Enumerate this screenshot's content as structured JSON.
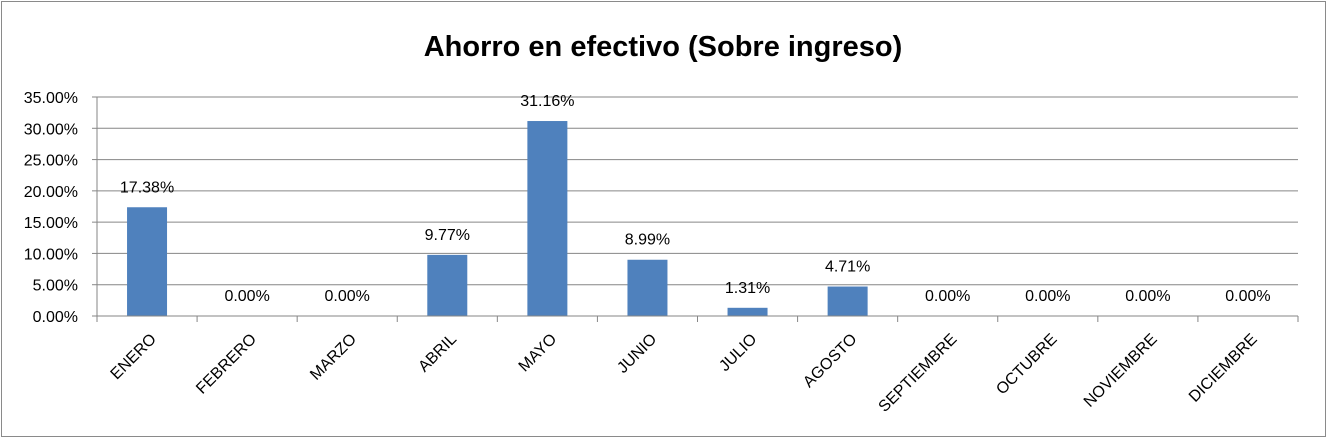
{
  "chart_data": {
    "type": "bar",
    "title": "Ahorro en efectivo (Sobre ingreso)",
    "xlabel": "",
    "ylabel": "",
    "categories": [
      "ENERO",
      "FEBRERO",
      "MARZO",
      "ABRIL",
      "MAYO",
      "JUNIO",
      "JULIO",
      "AGOSTO",
      "SEPTIEMBRE",
      "OCTUBRE",
      "NOVIEMBRE",
      "DICIEMBRE"
    ],
    "values": [
      17.38,
      0.0,
      0.0,
      9.77,
      31.16,
      8.99,
      1.31,
      4.71,
      0.0,
      0.0,
      0.0,
      0.0
    ],
    "data_labels": [
      "17.38%",
      "0.00%",
      "0.00%",
      "9.77%",
      "31.16%",
      "8.99%",
      "1.31%",
      "4.71%",
      "0.00%",
      "0.00%",
      "0.00%",
      "0.00%"
    ],
    "y_ticks": [
      "0.00%",
      "5.00%",
      "10.00%",
      "15.00%",
      "20.00%",
      "25.00%",
      "30.00%",
      "35.00%"
    ],
    "ylim": [
      0,
      35
    ],
    "grid": true,
    "legend": "none",
    "bar_color": "#4f81bd",
    "grid_color": "#868686"
  }
}
